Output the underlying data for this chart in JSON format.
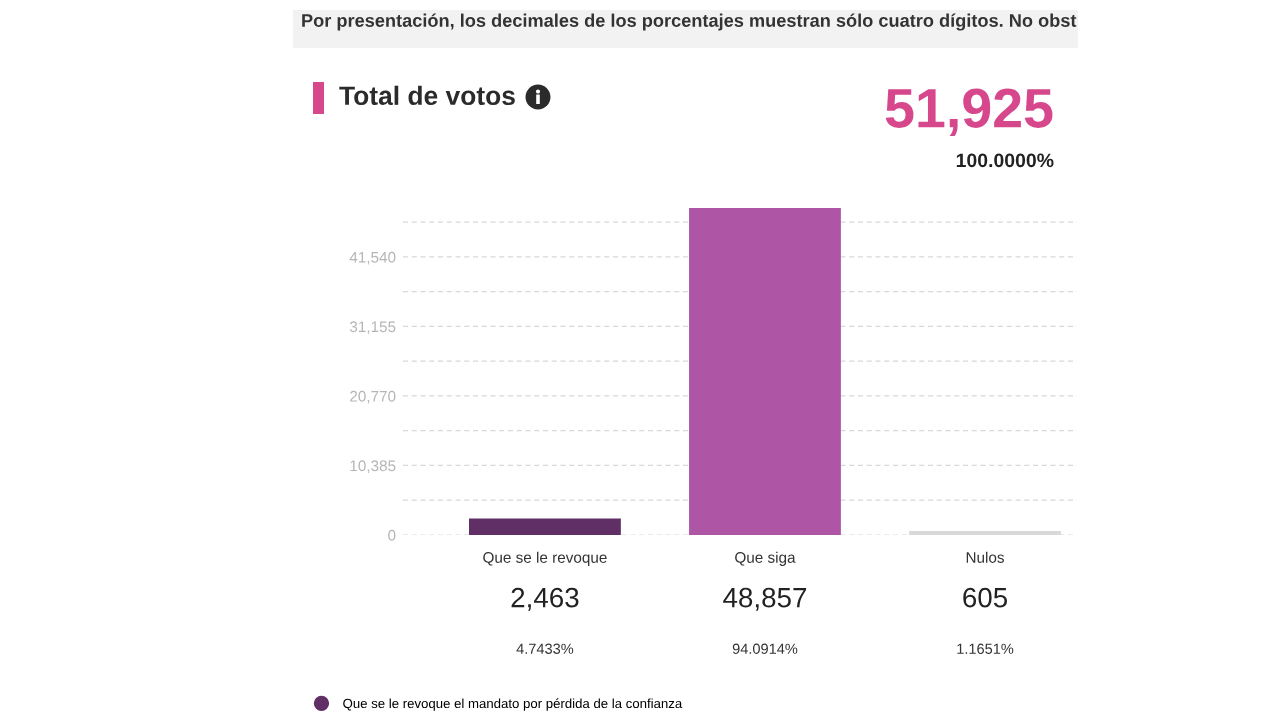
{
  "chart_data": {
    "type": "bar",
    "title": "Total de votos",
    "categories": [
      "Que se le revoque",
      "Que siga",
      "Nulos"
    ],
    "series": [
      {
        "name": "Que se le revoque el mandato por pérdida de la confianza",
        "color": "#5f2f66",
        "colors": [
          "#5f2f66",
          "#ae55a6",
          "#d9d9d9"
        ],
        "values": [
          2463,
          48857,
          605
        ],
        "value_labels": [
          "2,463",
          "48,857",
          "605"
        ]
      }
    ],
    "ylim": [
      0,
      48857
    ],
    "yticks": [
      0,
      {
        "value": 5192.5,
        "label": null
      },
      {
        "value": 10385,
        "label": "10,385"
      },
      {
        "value": 15577.5,
        "label": null
      },
      {
        "value": 20770,
        "label": "20,770"
      },
      {
        "value": 25962.5,
        "label": null
      },
      {
        "value": 31155,
        "label": "31,155"
      },
      {
        "value": 36347.5,
        "label": null
      },
      {
        "value": 41540,
        "label": "41,540"
      },
      {
        "value": 46732.5,
        "label": null
      }
    ],
    "grid": "y",
    "legend": "bottom left",
    "annotations": [
      "Por presentación, los decimales de los porcentajes muestran sólo cuatro dígitos. No obst",
      "51,925",
      "100.0000%",
      "4.7433%",
      "94.0914%",
      "1.1651%"
    ]
  }
}
